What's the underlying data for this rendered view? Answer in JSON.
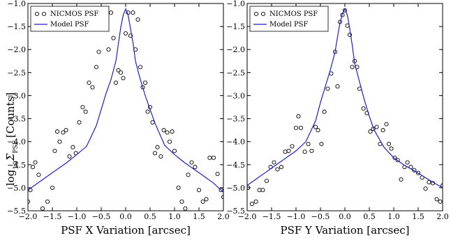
{
  "ylabel_main": "log",
  "ylabel_sub": "10",
  "ylabel_sigma": "Σ",
  "ylabel_sigma_sub": "PSF",
  "ylabel_units": "[Counts]",
  "colors": {
    "model": "#1f1fcc",
    "marker": "#000000"
  },
  "chart_data": [
    {
      "type": "scatter",
      "xlabel": "PSF X Variation [arcsec]",
      "xlim": [
        -2.0,
        2.0
      ],
      "ylim": [
        -5.5,
        -1.0
      ],
      "xticks": [
        "−2.0",
        "−1.5",
        "−1.0",
        "−0.5",
        "0.0",
        "0.5",
        "1.0",
        "1.5",
        "2.0"
      ],
      "yticks": [
        "−1.0",
        "−1.5",
        "−2.0",
        "−2.5",
        "−3.0",
        "−3.5",
        "−4.0",
        "−4.5",
        "−5.0",
        "−5.5"
      ],
      "legend": {
        "placement": "top-left",
        "entries": [
          "NICMOS PSF",
          "Model PSF"
        ]
      },
      "series": [
        {
          "name": "NICMOS PSF",
          "marker": "circle",
          "x": [
            -2.0,
            -1.95,
            -1.9,
            -1.85,
            -1.78,
            -1.7,
            -1.6,
            -1.5,
            -1.45,
            -1.4,
            -1.35,
            -1.28,
            -1.22,
            -1.15,
            -1.08,
            -1.02,
            -0.95,
            -0.88,
            -0.82,
            -0.75,
            -0.68,
            -0.6,
            -0.55,
            -0.48,
            -0.42,
            -0.35,
            -0.3,
            -0.25,
            -0.2,
            -0.15,
            -0.1,
            -0.05,
            0.0,
            0.05,
            0.1,
            0.15,
            0.2,
            0.25,
            0.3,
            0.35,
            0.4,
            0.45,
            0.5,
            0.55,
            0.6,
            0.65,
            0.72,
            0.78,
            0.85,
            0.9,
            0.95,
            1.0,
            1.08,
            1.15,
            1.22,
            1.28,
            1.35,
            1.42,
            1.5,
            1.58,
            1.65,
            1.72,
            1.8,
            1.88,
            1.95,
            2.0
          ],
          "y": [
            -5.3,
            -5.05,
            -4.55,
            -4.45,
            -4.72,
            -5.45,
            -5.3,
            -5.0,
            -4.2,
            -3.78,
            -4.0,
            -3.8,
            -3.75,
            -4.32,
            -4.12,
            -4.25,
            -3.58,
            -3.25,
            -3.35,
            -2.72,
            -2.82,
            -2.38,
            -2.05,
            -1.35,
            -1.2,
            -2.0,
            -1.2,
            -1.75,
            -2.72,
            -2.45,
            -2.5,
            -2.62,
            -1.65,
            -1.2,
            -1.7,
            -1.2,
            -2.0,
            -1.35,
            -2.38,
            -2.82,
            -2.72,
            -3.35,
            -3.25,
            -3.58,
            -4.25,
            -4.12,
            -4.32,
            -3.75,
            -3.8,
            -4.0,
            -3.78,
            -4.2,
            -5.0,
            -5.3,
            -5.45,
            -4.72,
            -4.45,
            -4.55,
            -5.05,
            -5.3,
            -5.25,
            -4.35,
            -4.35,
            -4.7,
            -5.05,
            -5.2
          ]
        },
        {
          "name": "Model PSF",
          "marker": "line",
          "x": [
            -2.0,
            -1.8,
            -1.6,
            -1.4,
            -1.2,
            -1.0,
            -0.8,
            -0.6,
            -0.5,
            -0.4,
            -0.3,
            -0.2,
            -0.15,
            -0.1,
            -0.05,
            0.0,
            0.05,
            0.1,
            0.15,
            0.2,
            0.3,
            0.4,
            0.5,
            0.6,
            0.8,
            1.0,
            1.2,
            1.4,
            1.6,
            1.8,
            2.0
          ],
          "y": [
            -5.05,
            -4.9,
            -4.75,
            -4.6,
            -4.45,
            -4.28,
            -4.1,
            -3.65,
            -3.3,
            -2.95,
            -2.65,
            -2.25,
            -1.88,
            -1.52,
            -1.25,
            -1.12,
            -1.25,
            -1.55,
            -1.85,
            -2.25,
            -2.65,
            -3.0,
            -3.3,
            -3.6,
            -4.08,
            -4.28,
            -4.45,
            -4.6,
            -4.75,
            -4.9,
            -5.1
          ]
        }
      ]
    },
    {
      "type": "scatter",
      "xlabel": "PSF Y Variation [arcsec]",
      "xlim": [
        -2.0,
        2.0
      ],
      "ylim": [
        -5.5,
        -1.0
      ],
      "xticks": [
        "−2.0",
        "−1.5",
        "−1.0",
        "−0.5",
        "0.0",
        "0.5",
        "1.0",
        "1.5",
        "2.0"
      ],
      "yticks": [
        "−1.0",
        "−1.5",
        "−2.0",
        "−2.5",
        "−3.0",
        "−3.5",
        "−4.0",
        "−4.5",
        "−5.0",
        "−5.5"
      ],
      "legend": {
        "placement": "top-left",
        "entries": [
          "NICMOS PSF",
          "Model PSF"
        ]
      },
      "series": [
        {
          "name": "NICMOS PSF",
          "marker": "circle",
          "x": [
            -1.98,
            -1.9,
            -1.82,
            -1.75,
            -1.68,
            -1.6,
            -1.52,
            -1.45,
            -1.38,
            -1.3,
            -1.22,
            -1.15,
            -1.08,
            -1.0,
            -0.95,
            -0.9,
            -0.82,
            -0.75,
            -0.68,
            -0.6,
            -0.55,
            -0.48,
            -0.42,
            -0.35,
            -0.28,
            -0.2,
            -0.15,
            -0.1,
            -0.05,
            0.0,
            0.05,
            0.1,
            0.15,
            0.2,
            0.25,
            0.3,
            0.38,
            0.45,
            0.52,
            0.58,
            0.65,
            0.72,
            0.78,
            0.85,
            0.9,
            0.95,
            1.02,
            1.08,
            1.15,
            1.22,
            1.28,
            1.35,
            1.42,
            1.5,
            1.58,
            1.65,
            1.72,
            1.8,
            1.88,
            1.95,
            2.0
          ],
          "y": [
            -5.0,
            -5.35,
            -5.3,
            -5.05,
            -5.05,
            -4.85,
            -4.55,
            -4.45,
            -4.6,
            -4.55,
            -4.22,
            -4.2,
            -4.1,
            -3.7,
            -3.45,
            -3.7,
            -4.22,
            -4.05,
            -4.2,
            -3.68,
            -3.75,
            -4.05,
            -3.35,
            -2.85,
            -2.52,
            -2.05,
            -2.8,
            -1.4,
            -1.25,
            -1.15,
            -1.48,
            -1.68,
            -2.38,
            -2.25,
            -2.38,
            -2.85,
            -3.28,
            -3.38,
            -3.78,
            -3.72,
            -3.68,
            -4.05,
            -3.75,
            -3.62,
            -4.05,
            -4.15,
            -4.35,
            -4.4,
            -4.82,
            -4.55,
            -4.45,
            -4.55,
            -4.62,
            -4.68,
            -4.78,
            -5.02,
            -4.88,
            -4.9,
            -5.25,
            -5.3,
            -4.95
          ]
        },
        {
          "name": "Model PSF",
          "marker": "line",
          "x": [
            -2.0,
            -1.8,
            -1.6,
            -1.4,
            -1.2,
            -1.0,
            -0.8,
            -0.6,
            -0.5,
            -0.4,
            -0.3,
            -0.2,
            -0.15,
            -0.1,
            -0.05,
            0.0,
            0.05,
            0.1,
            0.15,
            0.2,
            0.3,
            0.4,
            0.5,
            0.6,
            0.8,
            1.0,
            1.2,
            1.4,
            1.6,
            1.8,
            2.0
          ],
          "y": [
            -4.95,
            -4.8,
            -4.65,
            -4.5,
            -4.35,
            -4.2,
            -4.0,
            -3.55,
            -3.15,
            -2.8,
            -2.45,
            -2.05,
            -1.72,
            -1.42,
            -1.22,
            -1.12,
            -1.25,
            -1.55,
            -1.9,
            -2.3,
            -2.7,
            -3.1,
            -3.45,
            -3.75,
            -4.12,
            -4.35,
            -4.5,
            -4.62,
            -4.75,
            -4.88,
            -5.0
          ]
        }
      ]
    }
  ]
}
